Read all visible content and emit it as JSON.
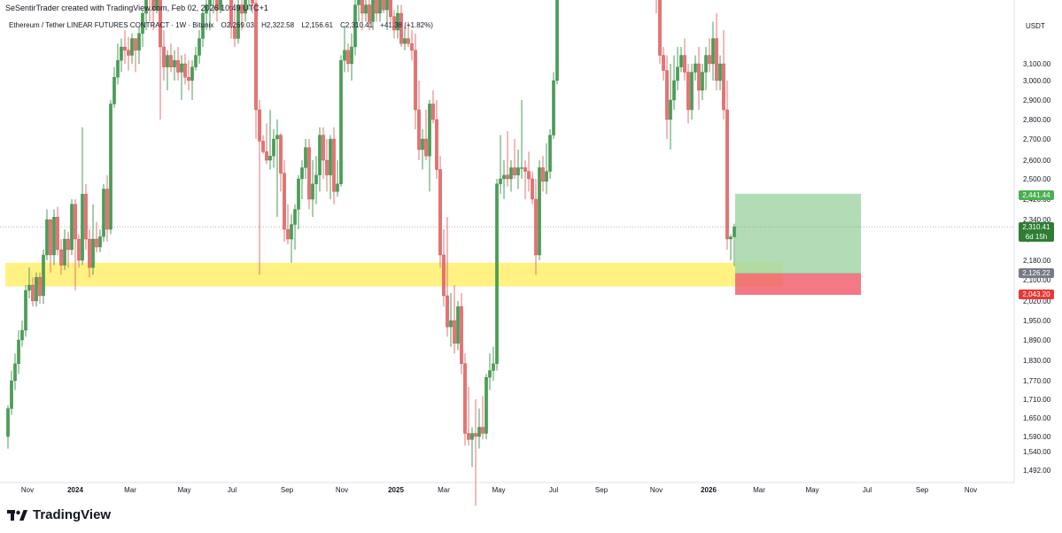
{
  "header": {
    "attribution": "SeSentirTrader created with TradingView.com, Feb 02, 2026 10:49 UTC+1"
  },
  "symbol": {
    "name": "Ethereum / Tether LINEAR FUTURES CONTRACT · 1W · Bitunix",
    "open": "O2,269.03",
    "high": "H2,322.58",
    "low": "L2,156.61",
    "close": "C2,310.41",
    "change": "+41.38 (+1.82%)"
  },
  "currency_label": "USDT",
  "branding": {
    "name": "TradingView"
  },
  "price_tags": {
    "target": "2,441.44",
    "current": "2,310.41",
    "countdown": "6d 15h",
    "level": "2,126.22",
    "stop": "2,043.20"
  },
  "colors": {
    "up": "#26a69a",
    "up_body": "#4a9e58",
    "down": "#ef5350",
    "down_body": "#e57373",
    "zone": "#fff176",
    "profit": "#a5d6a7",
    "loss": "#f06270"
  },
  "chart_data": {
    "type": "candlestick",
    "timeframe": "1W",
    "y_scale": "log",
    "y_ticks": [
      "3,100.00",
      "3,000.00",
      "2,900.00",
      "2,800.00",
      "2,700.00",
      "2,600.00",
      "2,500.00",
      "2,420.00",
      "2,340.00",
      "2,260.00",
      "2,180.00",
      "2,100.00",
      "2,020.00",
      "1,950.00",
      "1,890.00",
      "1,830.00",
      "1,770.00",
      "1,710.00",
      "1,650.00",
      "1,590.00",
      "1,540.00",
      "1,492.00"
    ],
    "x_ticks": [
      "Nov",
      "2024",
      "Mar",
      "May",
      "Jul",
      "Sep",
      "Nov",
      "2025",
      "Mar",
      "May",
      "Jul",
      "Sep",
      "Nov",
      "2026",
      "Mar",
      "May",
      "Jul",
      "Sep",
      "Nov"
    ],
    "last_candle": {
      "open": 2269.03,
      "high": 2322.58,
      "low": 2156.61,
      "close": 2310.41
    },
    "support_zone": {
      "top": 2170,
      "bottom": 2075
    },
    "long_position": {
      "entry": 2126.22,
      "target": 2441.44,
      "stop": 2043.2
    },
    "current_price": 2310.41
  }
}
